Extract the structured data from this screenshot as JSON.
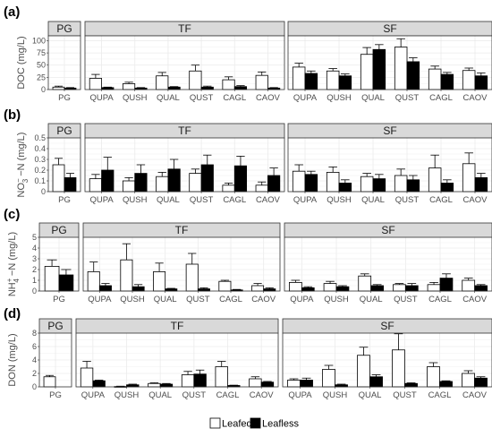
{
  "chart_data": [
    {
      "type": "bar",
      "panel_label": "(a)",
      "ylabel": "DOC (mg/L)",
      "ylim": [
        0,
        110
      ],
      "yticks": [
        0,
        25,
        50,
        75,
        100
      ],
      "facets": [
        {
          "title": "PG",
          "categories": [
            "PG"
          ],
          "series": [
            {
              "name": "Leafed",
              "values": [
                5
              ],
              "err": [
                2
              ]
            },
            {
              "name": "Leafless",
              "values": [
                3
              ],
              "err": [
                1
              ]
            }
          ]
        },
        {
          "title": "TF",
          "categories": [
            "QUPA",
            "QUSH",
            "QUAL",
            "QUST",
            "CAGL",
            "CAOV"
          ],
          "series": [
            {
              "name": "Leafed",
              "values": [
                23,
                12,
                28,
                38,
                20,
                29
              ],
              "err": [
                8,
                3,
                7,
                12,
                6,
                7
              ]
            },
            {
              "name": "Leafless",
              "values": [
                4,
                3,
                5,
                5,
                6,
                3
              ],
              "err": [
                1,
                1,
                1,
                2,
                2,
                1
              ]
            }
          ]
        },
        {
          "title": "SF",
          "categories": [
            "QUPA",
            "QUSH",
            "QUAL",
            "QUST",
            "CAGL",
            "CAOV"
          ],
          "series": [
            {
              "name": "Leafed",
              "values": [
                46,
                38,
                72,
                87,
                42,
                39
              ],
              "err": [
                8,
                5,
                14,
                17,
                6,
                5
              ]
            },
            {
              "name": "Leafless",
              "values": [
                33,
                28,
                82,
                57,
                31,
                28
              ],
              "err": [
                5,
                4,
                10,
                8,
                4,
                6
              ]
            }
          ]
        }
      ]
    },
    {
      "type": "bar",
      "panel_label": "(b)",
      "ylabel": "NO3--N (mg/L)",
      "ylabel_parts": {
        "pre": "NO",
        "sub": "3",
        "sup": "−",
        "post": " −N (mg/L)"
      },
      "ylim": [
        0,
        0.5
      ],
      "yticks": [
        0,
        0.1,
        0.2,
        0.3,
        0.4,
        0.5
      ],
      "facets": [
        {
          "title": "PG",
          "categories": [
            "PG"
          ],
          "series": [
            {
              "name": "Leafed",
              "values": [
                0.25
              ],
              "err": [
                0.06
              ]
            },
            {
              "name": "Leafless",
              "values": [
                0.13
              ],
              "err": [
                0.04
              ]
            }
          ]
        },
        {
          "title": "TF",
          "categories": [
            "QUPA",
            "QUSH",
            "QUAL",
            "QUST",
            "CAGL",
            "CAOV"
          ],
          "series": [
            {
              "name": "Leafed",
              "values": [
                0.12,
                0.1,
                0.14,
                0.17,
                0.06,
                0.06
              ],
              "err": [
                0.04,
                0.03,
                0.04,
                0.04,
                0.02,
                0.03
              ]
            },
            {
              "name": "Leafless",
              "values": [
                0.2,
                0.17,
                0.21,
                0.25,
                0.24,
                0.15
              ],
              "err": [
                0.12,
                0.08,
                0.09,
                0.09,
                0.09,
                0.07
              ]
            }
          ]
        },
        {
          "title": "SF",
          "categories": [
            "QUPA",
            "QUSH",
            "QUAL",
            "QUST",
            "CAGL",
            "CAOV"
          ],
          "series": [
            {
              "name": "Leafed",
              "values": [
                0.19,
                0.18,
                0.14,
                0.15,
                0.22,
                0.26
              ],
              "err": [
                0.06,
                0.05,
                0.03,
                0.06,
                0.12,
                0.1
              ]
            },
            {
              "name": "Leafless",
              "values": [
                0.16,
                0.08,
                0.12,
                0.11,
                0.08,
                0.13
              ],
              "err": [
                0.03,
                0.03,
                0.04,
                0.04,
                0.03,
                0.04
              ]
            }
          ]
        }
      ]
    },
    {
      "type": "bar",
      "panel_label": "(c)",
      "ylabel": "NH4+-N (mg/L)",
      "ylabel_parts": {
        "pre": "NH",
        "sub": "4",
        "sup": "+",
        "post": " −N (mg/L)"
      },
      "ylim": [
        0,
        5
      ],
      "yticks": [
        0,
        1,
        2,
        3,
        4,
        5
      ],
      "facets": [
        {
          "title": "PG",
          "categories": [
            "PG"
          ],
          "series": [
            {
              "name": "Leafed",
              "values": [
                2.3
              ],
              "err": [
                0.6
              ]
            },
            {
              "name": "Leafless",
              "values": [
                1.5
              ],
              "err": [
                0.5
              ]
            }
          ]
        },
        {
          "title": "TF",
          "categories": [
            "QUPA",
            "QUSH",
            "QUAL",
            "QUST",
            "CAGL",
            "CAOV"
          ],
          "series": [
            {
              "name": "Leafed",
              "values": [
                1.8,
                2.9,
                1.8,
                2.5,
                0.9,
                0.5
              ],
              "err": [
                0.9,
                1.5,
                0.8,
                1.0,
                0.1,
                0.2
              ]
            },
            {
              "name": "Leafless",
              "values": [
                0.5,
                0.4,
                0.2,
                0.2,
                0.1,
                0.2
              ],
              "err": [
                0.2,
                0.2,
                0.05,
                0.1,
                0.05,
                0.1
              ]
            }
          ]
        },
        {
          "title": "SF",
          "categories": [
            "QUPA",
            "QUSH",
            "QUAL",
            "QUST",
            "CAGL",
            "CAOV"
          ],
          "series": [
            {
              "name": "Leafed",
              "values": [
                0.8,
                0.7,
                1.4,
                0.6,
                0.6,
                1.0
              ],
              "err": [
                0.2,
                0.2,
                0.2,
                0.1,
                0.2,
                0.2
              ]
            },
            {
              "name": "Leafless",
              "values": [
                0.3,
                0.4,
                0.5,
                0.5,
                1.2,
                0.5
              ],
              "err": [
                0.1,
                0.1,
                0.1,
                0.2,
                0.4,
                0.1
              ]
            }
          ]
        }
      ]
    },
    {
      "type": "bar",
      "panel_label": "(d)",
      "ylabel": "DON (mg/L)",
      "ylim": [
        0,
        8
      ],
      "yticks": [
        0,
        2,
        4,
        6,
        8
      ],
      "facets": [
        {
          "title": "PG",
          "categories": [
            "PG"
          ],
          "series": [
            {
              "name": "Leafed",
              "values": [
                1.5
              ],
              "err": [
                0.2
              ]
            },
            {
              "name": "Leafless",
              "values": [
                null
              ],
              "err": [
                null
              ]
            }
          ]
        },
        {
          "title": "TF",
          "categories": [
            "QUPA",
            "QUSH",
            "QUAL",
            "QUST",
            "CAGL",
            "CAOV"
          ],
          "series": [
            {
              "name": "Leafed",
              "values": [
                2.8,
                0.05,
                0.5,
                1.8,
                3.0,
                1.2
              ],
              "err": [
                1.0,
                0.05,
                0.1,
                0.5,
                0.8,
                0.3
              ]
            },
            {
              "name": "Leafless",
              "values": [
                0.9,
                0.3,
                0.4,
                1.9,
                0.2,
                0.7
              ],
              "err": [
                0.1,
                0.1,
                0.1,
                0.6,
                0.05,
                0.1
              ]
            }
          ]
        },
        {
          "title": "SF",
          "categories": [
            "QUPA",
            "QUSH",
            "QUAL",
            "QUST",
            "CAGL",
            "CAOV"
          ],
          "series": [
            {
              "name": "Leafed",
              "values": [
                1.0,
                2.6,
                4.7,
                5.5,
                3.0,
                2.0
              ],
              "err": [
                0.2,
                0.6,
                1.2,
                2.4,
                0.6,
                0.4
              ]
            },
            {
              "name": "Leafless",
              "values": [
                1.0,
                0.3,
                1.5,
                0.5,
                0.8,
                1.3
              ],
              "err": [
                0.3,
                0.1,
                0.3,
                0.1,
                0.1,
                0.2
              ]
            }
          ]
        }
      ]
    }
  ],
  "legend": {
    "placement": "bottom-center",
    "items": [
      {
        "name": "Leafed",
        "color": "#ffffff"
      },
      {
        "name": "Leafless",
        "color": "#000000"
      }
    ]
  },
  "colors": {
    "leafed_fill": "#ffffff",
    "leafless_fill": "#000000",
    "bar_stroke": "#000000",
    "strip_fill": "#d9d9d9",
    "grid": "#ebebeb",
    "panel_border": "#333333"
  }
}
